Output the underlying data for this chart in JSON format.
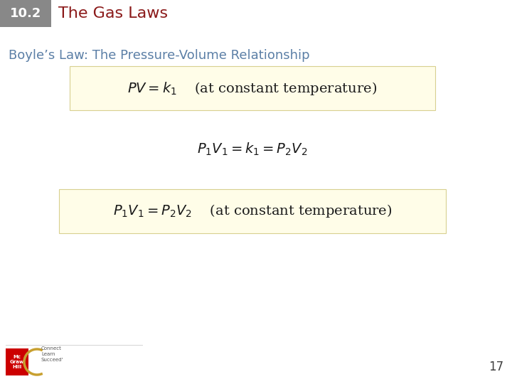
{
  "header_box_color": "#888888",
  "header_number": "10.2",
  "header_number_color": "#ffffff",
  "header_title": "The Gas Laws",
  "header_title_color": "#8b1a1a",
  "subtitle": "Boyle’s Law: The Pressure-Volume Relationship",
  "subtitle_color": "#5b7fa6",
  "highlight_box_color": "#fffde8",
  "highlight_box_edge": "#d8d090",
  "page_number": "17",
  "page_number_color": "#404040",
  "bg_color": "#ffffff",
  "eq_color": "#1a1a1a"
}
